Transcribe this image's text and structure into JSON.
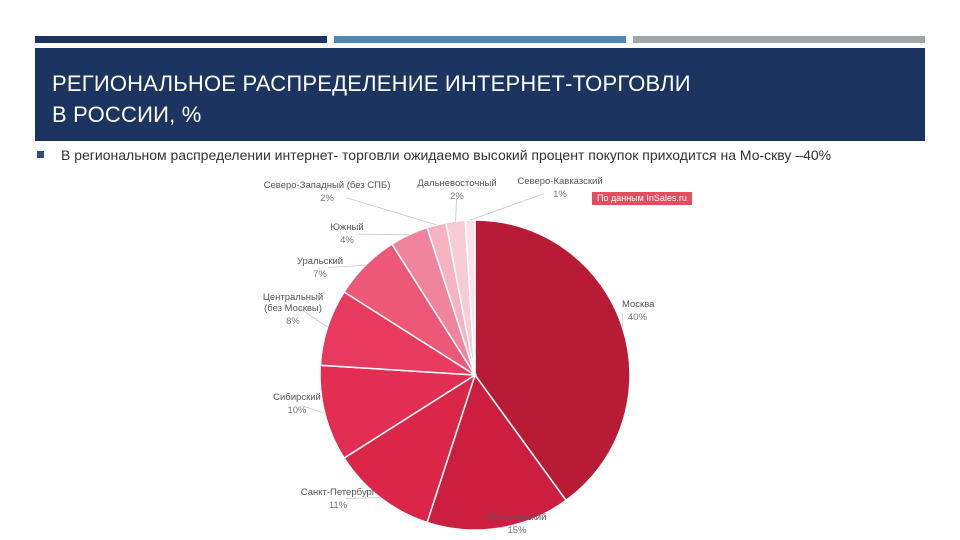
{
  "slide": {
    "title_line1": "РЕГИОНАЛЬНОЕ РАСПРЕДЕЛЕНИЕ ИНТЕРНЕТ-ТОРГОВЛИ",
    "title_line2": "В РОССИИ, %",
    "bullet_text": "В региональном распределении интернет- торговли ожидаемо высокий процент покупок приходится на Мо-скву –40%",
    "bullet_icon": "square-bullet-icon"
  },
  "colors": {
    "header_band": "#1b3560",
    "bar_dark_blue": "#1b3560",
    "bar_mid_blue": "#4c86b4",
    "bar_gray": "#a2a5a8",
    "badge": "#e54d5f"
  },
  "chart_data": {
    "type": "pie",
    "source_note": "По данным InSales.ru",
    "categories": [
      "Москва",
      "Приволжский",
      "Санкт-Петербург",
      "Сибирский",
      "Центральный (без Москвы)",
      "Уральский",
      "Южный",
      "Северо-Западный (без СПБ)",
      "Дальневосточный",
      "Северо-Кавказский"
    ],
    "labels": [
      [
        "Москва"
      ],
      [
        "Приволжский"
      ],
      [
        "Санкт-Петербург"
      ],
      [
        "Сибирский"
      ],
      [
        "Центральный",
        "(без Москвы)"
      ],
      [
        "Уральский"
      ],
      [
        "Южный"
      ],
      [
        "Северо-Западный (без СПБ)"
      ],
      [
        "Дальневосточный"
      ],
      [
        "Северо-Кавказский"
      ]
    ],
    "values": [
      40,
      15,
      11,
      10,
      8,
      7,
      4,
      2,
      2,
      1
    ],
    "value_labels": [
      "40%",
      "15%",
      "11%",
      "10%",
      "8%",
      "7%",
      "4%",
      "2%",
      "2%",
      "1%"
    ],
    "colors": [
      "#b81c35",
      "#cc1f3f",
      "#dc2647",
      "#e22e52",
      "#e8395f",
      "#ee5878",
      "#f0849c",
      "#f6b3c1",
      "#f8cbd5",
      "#fbe2e8"
    ],
    "start": "top",
    "direction": "clockwise"
  }
}
